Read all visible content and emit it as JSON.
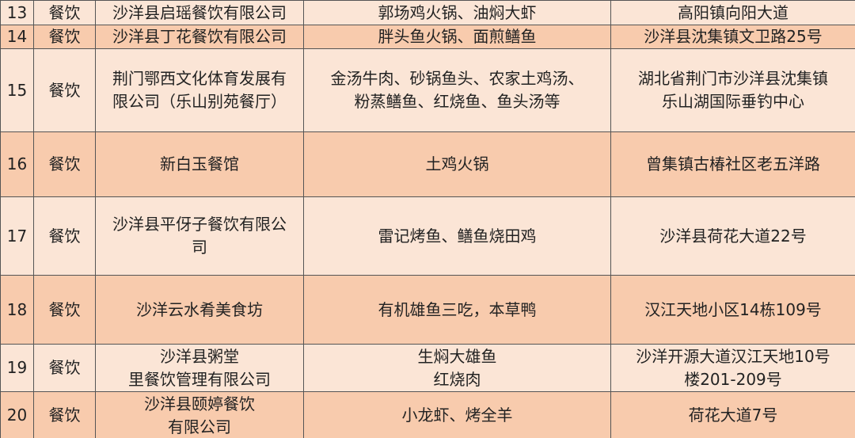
{
  "table": {
    "rows": [
      [
        "13",
        "餐饮",
        [
          "沙洋县启瑶餐饮有限公司"
        ],
        [
          "郭场鸡火锅、油焖大虾"
        ],
        [
          "高阳镇向阳大道"
        ]
      ],
      [
        "14",
        "餐饮",
        [
          "沙洋县丁花餐饮有限公司"
        ],
        [
          "胖头鱼火锅、面煎鳝鱼"
        ],
        [
          "沙洋县沈集镇文卫路25号"
        ]
      ],
      [
        "15",
        "餐饮",
        [
          "荆门鄂西文化体育发展有",
          "限公司（乐山别苑餐厅）"
        ],
        [
          "金汤牛肉、砂锅鱼头、农家土鸡汤、",
          "粉蒸鳝鱼、红烧鱼、鱼头汤等"
        ],
        [
          "湖北省荆门市沙洋县沈集镇",
          "乐山湖国际垂钓中心"
        ]
      ],
      [
        "16",
        "餐饮",
        [
          "新白玉餐馆"
        ],
        [
          "土鸡火锅"
        ],
        [
          "曾集镇古椿社区老五洋路"
        ]
      ],
      [
        "17",
        "餐饮",
        [
          "沙洋县平伢子餐饮有限公",
          "司"
        ],
        [
          "雷记烤鱼、鳝鱼烧田鸡"
        ],
        [
          "沙洋县荷花大道22号"
        ]
      ],
      [
        "18",
        "餐饮",
        [
          "沙洋云水肴美食坊"
        ],
        [
          "有机雄鱼三吃，本草鸭"
        ],
        [
          "汉江天地小区14栋109号"
        ]
      ],
      [
        "19",
        "餐饮",
        [
          "沙洋县粥堂",
          "里餐饮管理有限公司"
        ],
        [
          "生焖大雄鱼",
          "红烧肉"
        ],
        [
          "沙洋开源大道汉江天地10号",
          "楼201-209号"
        ]
      ],
      [
        "20",
        "餐饮",
        [
          "沙洋县颐婷餐饮",
          "有限公司"
        ],
        [
          "小龙虾、烤全羊"
        ],
        [
          "荷花大道7号"
        ]
      ]
    ]
  }
}
